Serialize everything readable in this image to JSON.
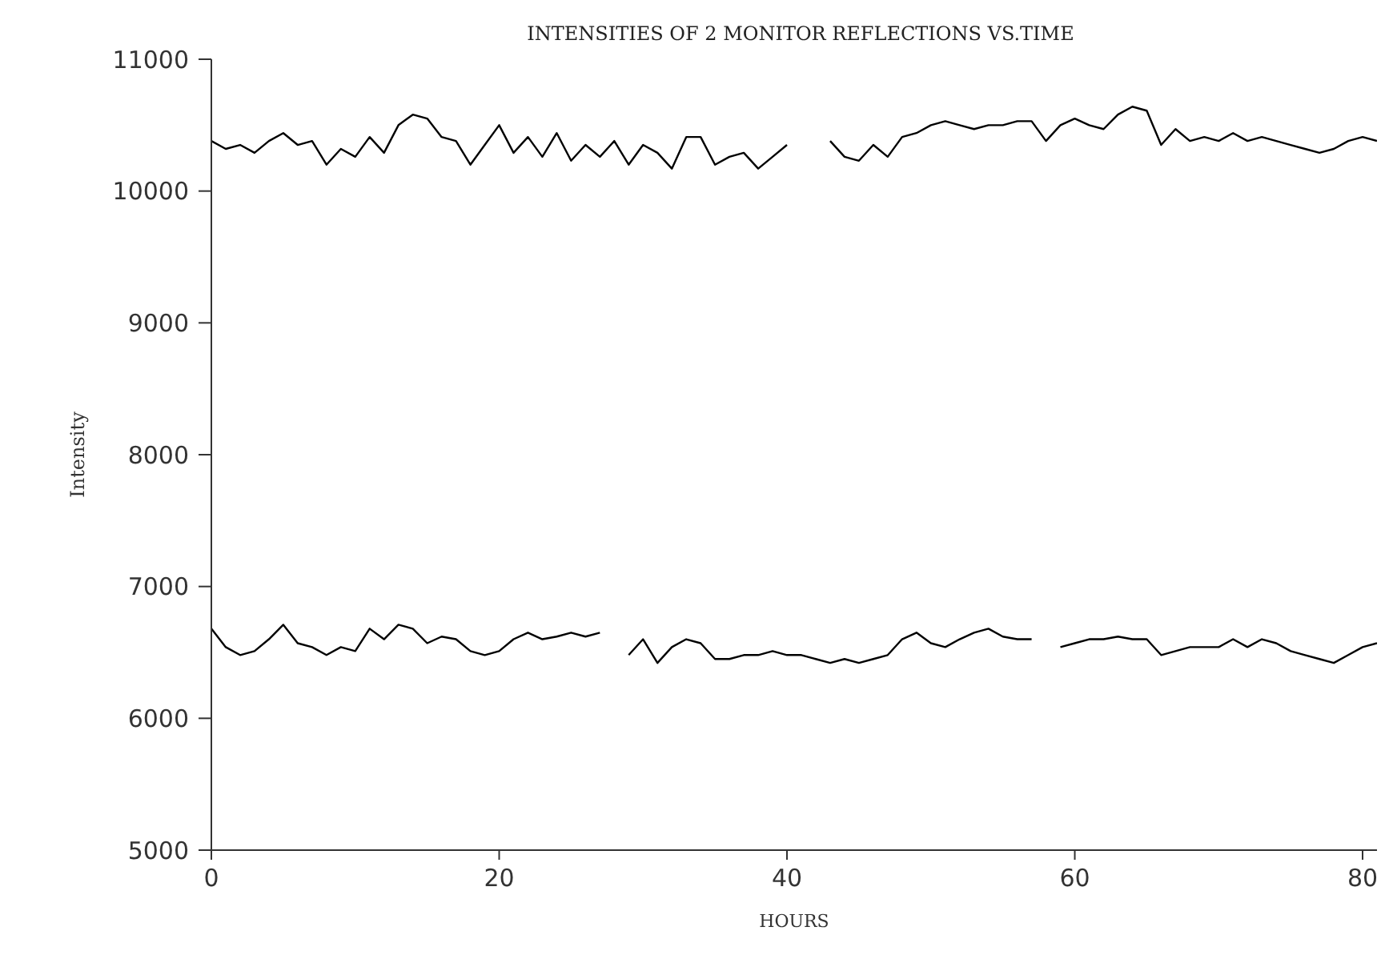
{
  "chart_data": {
    "type": "line",
    "title": "INTENSITIES OF 2 MONITOR REFLECTIONS VS.TIME",
    "xlabel": "HOURS",
    "ylabel": "Intensity",
    "x": [
      0,
      1,
      2,
      3,
      4,
      5,
      6,
      7,
      8,
      9,
      10,
      11,
      12,
      13,
      14,
      15,
      16,
      17,
      18,
      19,
      20,
      21,
      22,
      23,
      24,
      25,
      26,
      27,
      28,
      29,
      30,
      31,
      32,
      33,
      34,
      35,
      36,
      37,
      38,
      39,
      40,
      41,
      42,
      43,
      44,
      45,
      46,
      47,
      48,
      49,
      50,
      51,
      52,
      53,
      54,
      55,
      56,
      57,
      58,
      59,
      60,
      61,
      62,
      63,
      64,
      65,
      66,
      67,
      68,
      69,
      70,
      71,
      72,
      73,
      74,
      75,
      76,
      77,
      78,
      79,
      80,
      81
    ],
    "series": [
      {
        "color": "#000000",
        "values": [
          10380,
          10320,
          10350,
          10290,
          10380,
          10440,
          10350,
          10380,
          10200,
          10320,
          10260,
          10410,
          10290,
          10500,
          10580,
          10550,
          10410,
          10380,
          10200,
          10350,
          10500,
          10290,
          10410,
          10260,
          10440,
          10230,
          10350,
          10260,
          10380,
          10200,
          10350,
          10290,
          10170,
          10410,
          10410,
          10200,
          10260,
          10290,
          10170,
          10260,
          10350,
          null,
          null,
          10380,
          10260,
          10230,
          10350,
          10260,
          10410,
          10440,
          10500,
          10530,
          10500,
          10470,
          10500,
          10500,
          10530,
          10530,
          10380,
          10500,
          10550,
          10500,
          10470,
          10580,
          10640,
          10610,
          10350,
          10470,
          10380,
          10410,
          10380,
          10440,
          10380,
          10410,
          10380,
          10350,
          10320,
          10290,
          10320,
          10380,
          10410,
          10380
        ]
      },
      {
        "color": "#000000",
        "values": [
          6680,
          6540,
          6480,
          6510,
          6600,
          6710,
          6570,
          6540,
          6480,
          6540,
          6510,
          6680,
          6600,
          6710,
          6680,
          6570,
          6620,
          6600,
          6510,
          6480,
          6510,
          6600,
          6650,
          6600,
          6620,
          6650,
          6620,
          6650,
          null,
          6480,
          6600,
          6420,
          6540,
          6600,
          6570,
          6450,
          6450,
          6480,
          6480,
          6510,
          6480,
          6480,
          6450,
          6420,
          6450,
          6420,
          6450,
          6480,
          6600,
          6650,
          6570,
          6540,
          6600,
          6650,
          6680,
          6620,
          6600,
          6600,
          null,
          6540,
          6570,
          6600,
          6600,
          6620,
          6600,
          6600,
          6480,
          6510,
          6540,
          6540,
          6540,
          6600,
          6540,
          6600,
          6570,
          6510,
          6480,
          6450,
          6420,
          6480,
          6540,
          6570
        ]
      }
    ],
    "xlim": [
      0,
      81
    ],
    "xticks": [
      0,
      20,
      40,
      60,
      80
    ],
    "ylim": [
      5000,
      11000
    ],
    "yticks": [
      5000,
      6000,
      7000,
      8000,
      9000,
      10000,
      11000
    ],
    "grid": false,
    "legend": false,
    "marker": "none",
    "line_style": "solid"
  }
}
